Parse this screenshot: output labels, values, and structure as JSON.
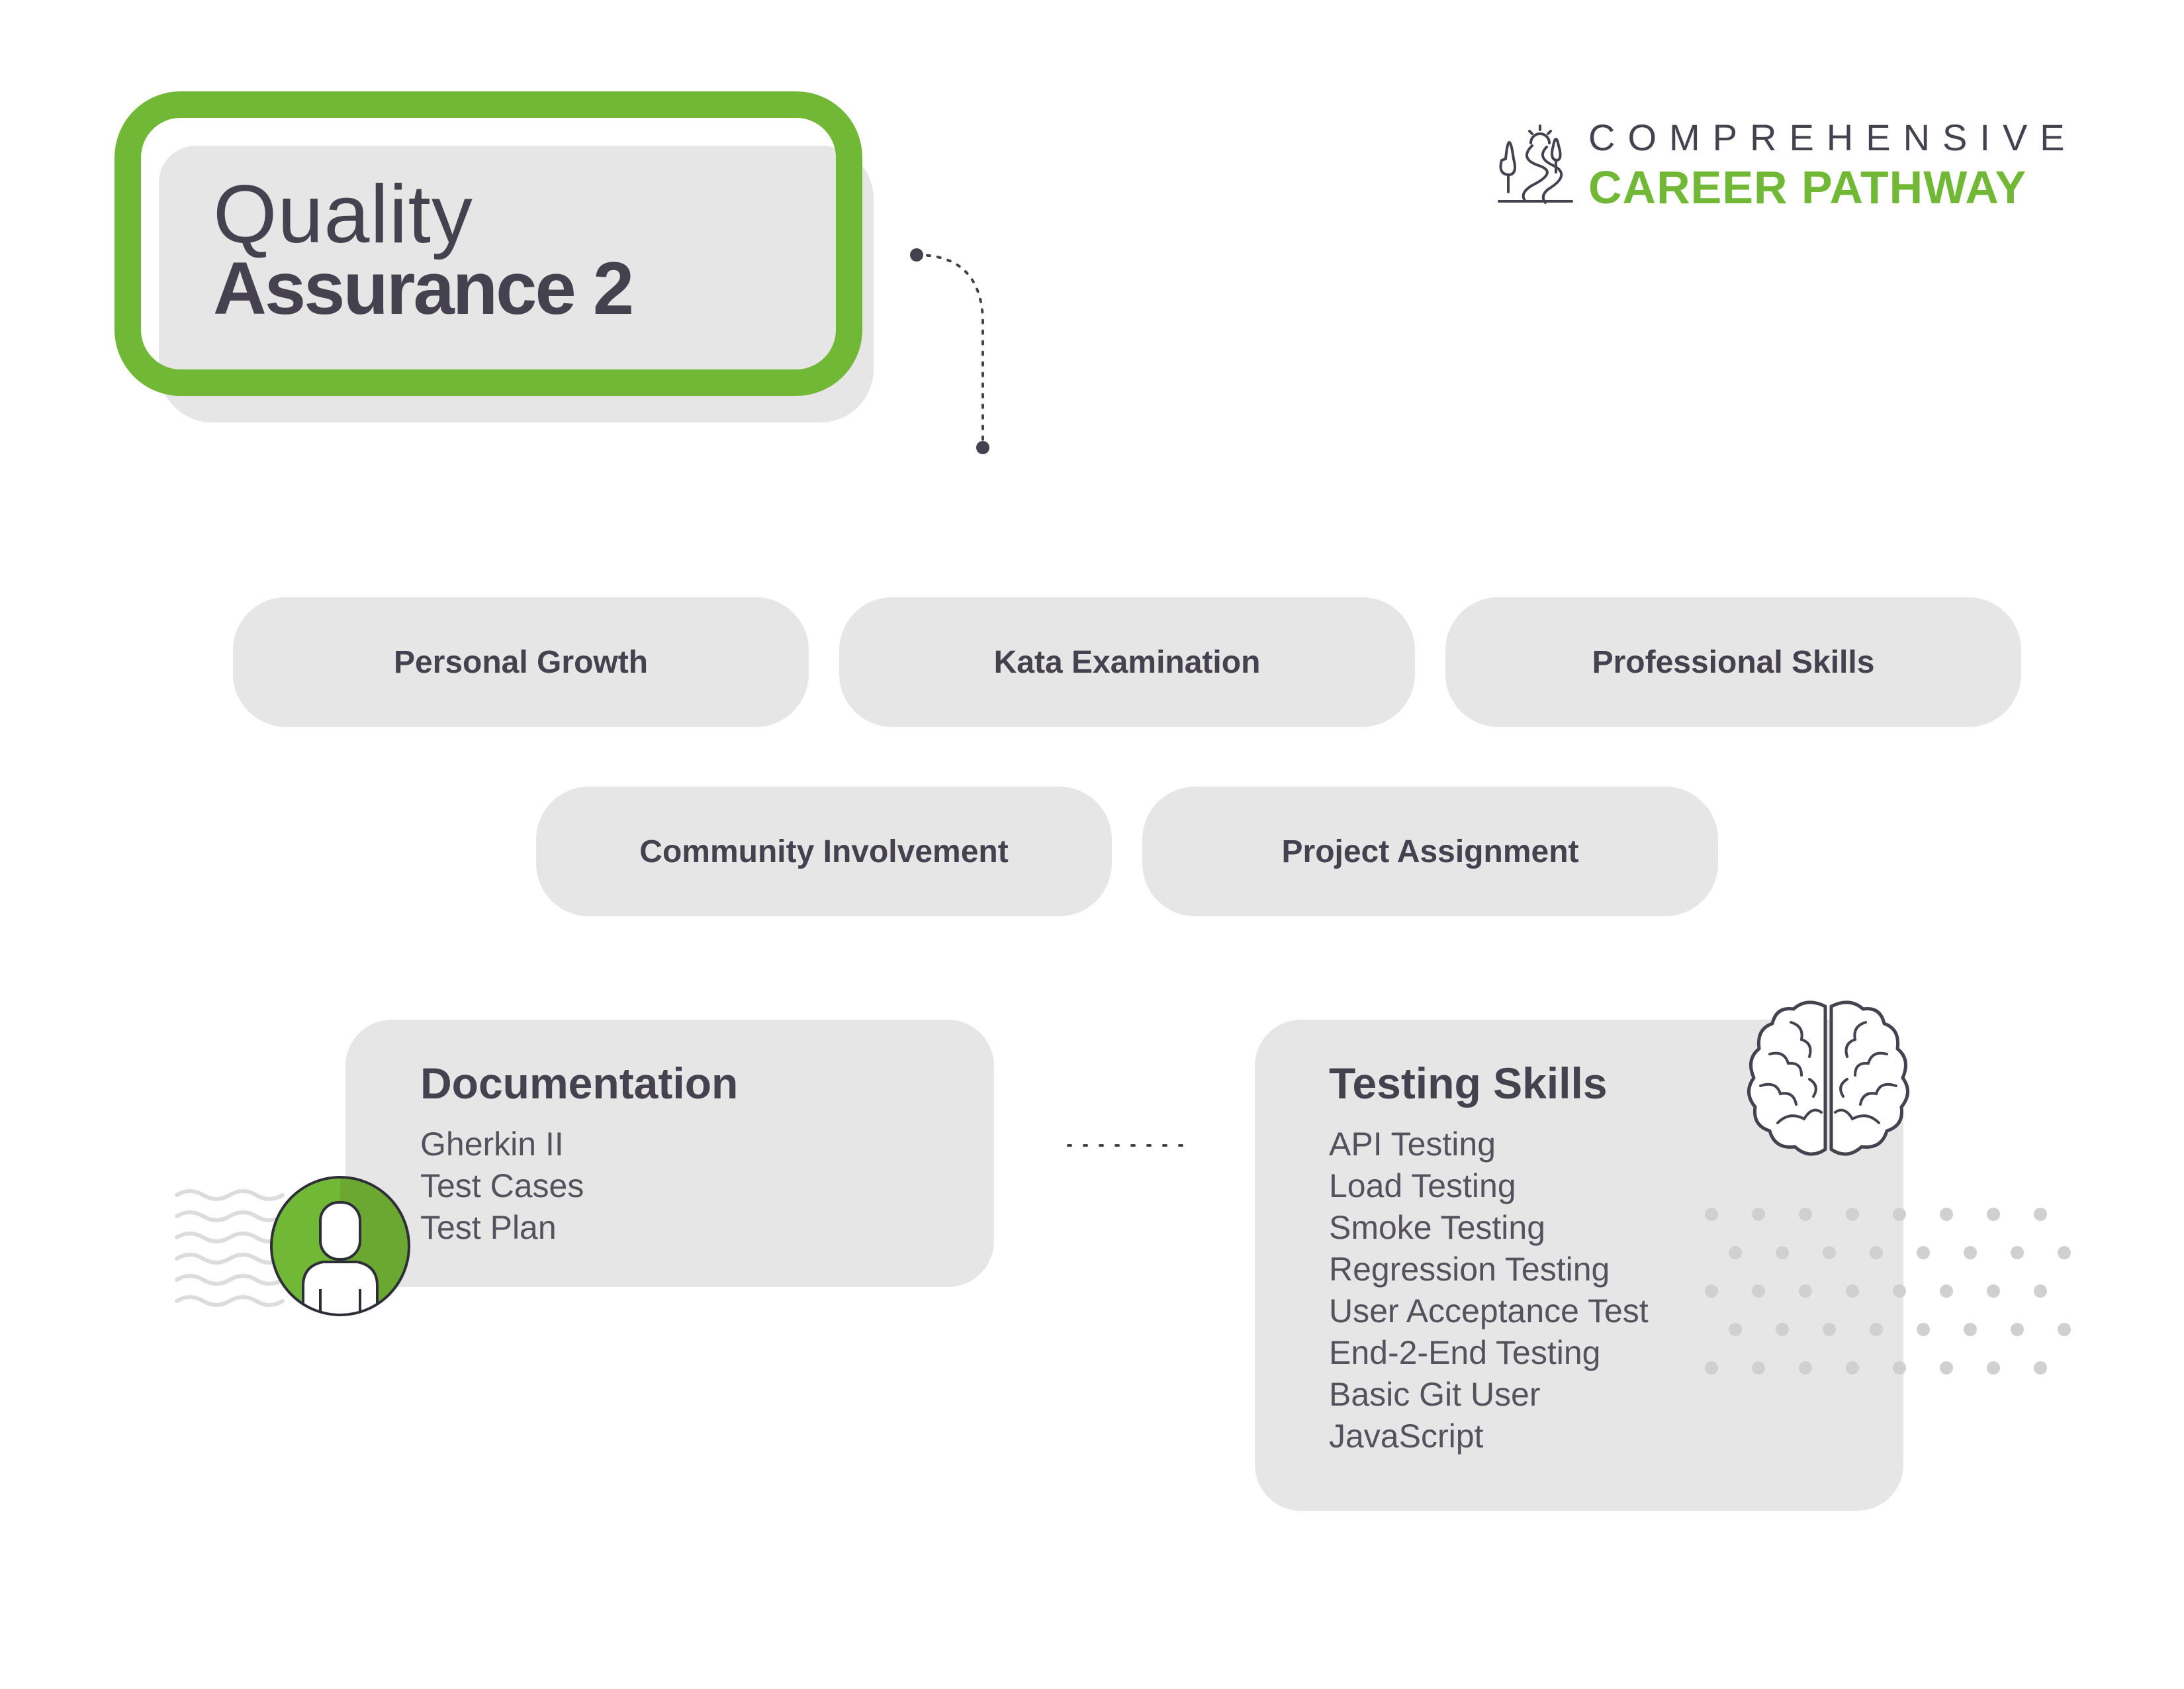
{
  "title": {
    "line1": "Quality",
    "line2": "Assurance 2"
  },
  "logo": {
    "icon": "path-trees-icon",
    "line1": "COMPREHENSIVE",
    "line2": "CAREER PATHWAY"
  },
  "categories": [
    "Personal Growth",
    "Kata Examination",
    "Professional Skills",
    "Community Involvement",
    "Project Assignment"
  ],
  "documentation": {
    "title": "Documentation",
    "items": [
      "Gherkin II",
      "Test Cases",
      "Test Plan"
    ]
  },
  "testing_skills": {
    "title": "Testing Skills",
    "items": [
      "API Testing",
      "Load Testing",
      "Smoke Testing",
      "Regression Testing",
      "User Acceptance Test",
      "End-2-End Testing",
      "Basic Git User",
      "JavaScript"
    ]
  },
  "colors": {
    "accent": "#72b837",
    "text": "#45414f",
    "card": "#e6e6e6"
  },
  "icons": [
    "person-avatar-icon",
    "brain-icon",
    "wave-pattern",
    "dot-grid-pattern"
  ]
}
